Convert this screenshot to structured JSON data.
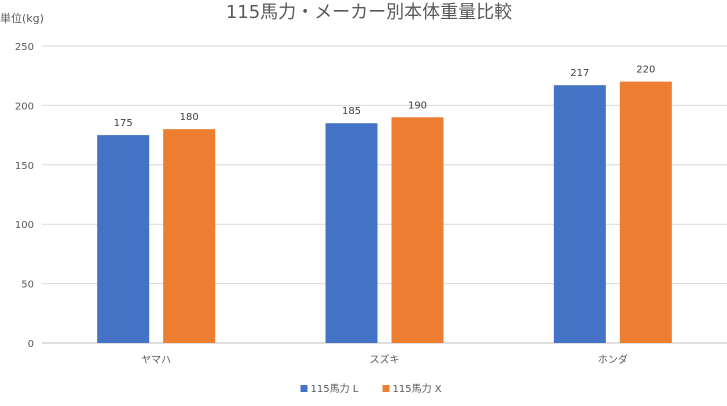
{
  "chart_data": {
    "type": "bar",
    "title": "115馬力・メーカー別本体重量比較",
    "ylabel": "単位(kg)",
    "xlabel": "",
    "categories": [
      "ヤマハ",
      "スズキ",
      "ホンダ"
    ],
    "series": [
      {
        "name": "115馬力 L",
        "values": [
          175,
          185,
          217
        ],
        "color": "#4472C4"
      },
      {
        "name": "115馬力 X",
        "values": [
          180,
          190,
          220
        ],
        "color": "#ED7D31"
      }
    ],
    "ylim": [
      0,
      250
    ],
    "yticks": [
      0,
      50,
      100,
      150,
      200,
      250
    ],
    "grid": true,
    "legend_position": "bottom",
    "data_labels": true
  }
}
